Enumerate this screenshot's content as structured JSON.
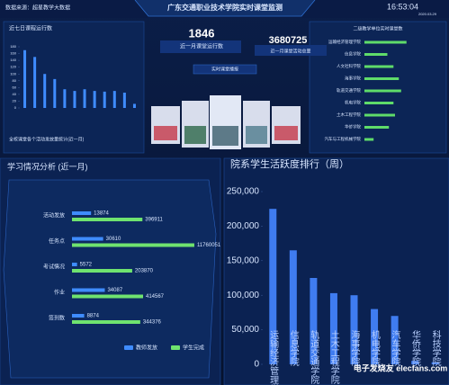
{
  "header": {
    "source": "数据来源：超星教学大数据",
    "title": "广东交通职业技术学院实时课堂监测",
    "time": "16:53:04",
    "date": "2020.03.29"
  },
  "stats": [
    {
      "value": "1846",
      "label": "近一月课堂运行数"
    },
    {
      "value": "3680725",
      "label": "近一月课堂活动总量"
    }
  ],
  "broadcast_title": "实时课堂播报",
  "activity_caption": "全校课堂各个活动发放量统计(近一月)",
  "watermark": "电子发烧友 elecfans.com",
  "chart_data": [
    {
      "type": "bar",
      "title": "近七日课程运行数",
      "categories": [
        null,
        null,
        null,
        null,
        null,
        null,
        null,
        null,
        null,
        null,
        null,
        null
      ],
      "values": [
        170,
        150,
        100,
        85,
        55,
        50,
        55,
        50,
        48,
        50,
        45,
        12
      ],
      "color": "#3f8cff",
      "ylim": [
        0,
        180
      ],
      "yticks": [
        0,
        20,
        40,
        60,
        80,
        100,
        120,
        140,
        160,
        180
      ]
    },
    {
      "type": "hbar",
      "title": "二级教学单位实时课堂数",
      "categories": [
        "运输经济管理学院",
        "信息学院",
        "人文社科学院",
        "海事学院",
        "轨道交通学院",
        "机电学院",
        "土木工程学院",
        "华侨学院",
        "汽车与工程机械学院"
      ],
      "values": [
        55,
        30,
        38,
        45,
        48,
        38,
        40,
        32,
        12
      ],
      "color": "#5fdc6a",
      "xlim": [
        0,
        100
      ]
    },
    {
      "type": "grouped-hbar",
      "title": "学习情况分析 (近一月)",
      "log": true,
      "categories": [
        "活动发放",
        "任务点",
        "考试情况",
        "作业",
        "签到数"
      ],
      "series": [
        {
          "name": "教师发放",
          "color": "#3f8cff",
          "values": [
            13874,
            30610,
            5572,
            34087,
            8874
          ]
        },
        {
          "name": "学生完成",
          "color": "#6fe36f",
          "values": [
            396911,
            11760051,
            203870,
            414567,
            344376
          ]
        }
      ],
      "xlim": [
        4000,
        20000000
      ]
    },
    {
      "type": "bar",
      "title": "院系学生活跃度排行（周）",
      "categories": [
        "运输经济管理学院",
        "信息学院",
        "轨道交通学院",
        "土木工程学院",
        "海事学院",
        "机电学院",
        "汽车学院",
        "华侨学院",
        "科技学院"
      ],
      "values": [
        225000,
        165000,
        125000,
        103000,
        100000,
        80000,
        70000,
        5000,
        3000
      ],
      "color": "#3f7cf0",
      "ylim": [
        0,
        250000
      ],
      "yticks": [
        0,
        {
          "value": 50000,
          "label": "50,000"
        },
        {
          "value": 100000,
          "label": "100,000"
        },
        {
          "value": 150000,
          "label": "150,000"
        },
        {
          "value": 200000,
          "label": "200,000"
        },
        {
          "value": 250000,
          "label": "250,000"
        }
      ]
    }
  ]
}
